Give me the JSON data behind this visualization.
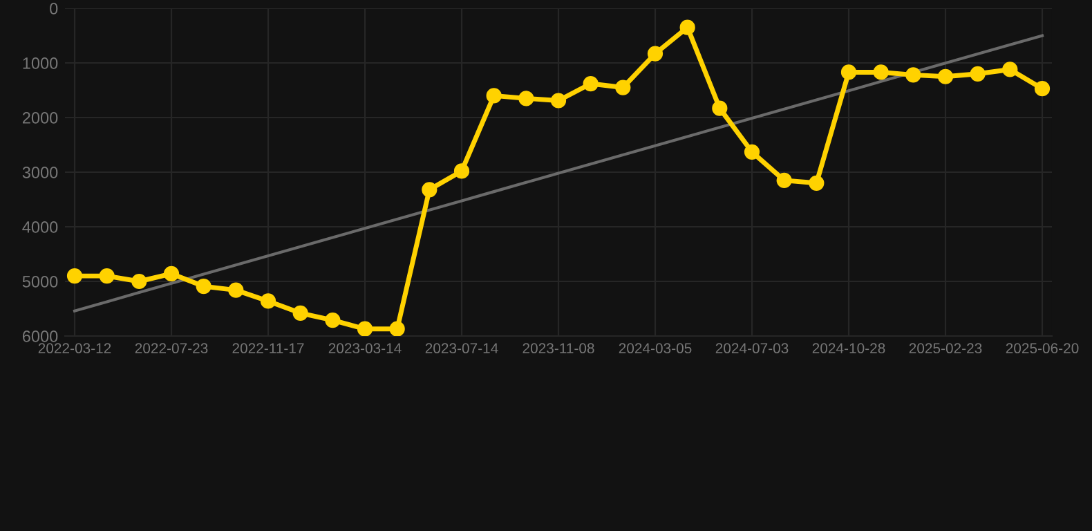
{
  "chart_data": {
    "type": "line",
    "categories": [
      "2022-03-12",
      null,
      null,
      "2022-07-23",
      null,
      null,
      "2022-11-17",
      null,
      null,
      "2023-03-14",
      null,
      null,
      "2023-07-14",
      null,
      null,
      "2023-11-08",
      null,
      null,
      "2024-03-05",
      null,
      null,
      "2024-07-03",
      null,
      null,
      "2024-10-28",
      null,
      null,
      "2025-02-23",
      null,
      null,
      "2025-06-20"
    ],
    "series": [
      {
        "color": "#ffd200",
        "marker": "circle",
        "values": [
          4900,
          4900,
          5000,
          4860,
          5090,
          5160,
          5360,
          5580,
          5710,
          5870,
          5870,
          3320,
          2980,
          1600,
          1650,
          1690,
          1380,
          1450,
          830,
          350,
          1830,
          2630,
          3150,
          3200,
          1170,
          1170,
          1220,
          1250,
          1200,
          1120,
          1470
        ]
      },
      {
        "type": "line",
        "color": "#6a6a6a",
        "marker": "none",
        "values": [
          5540,
          5372,
          5204,
          5036,
          4868,
          4700,
          4532,
          4364,
          4196,
          4028,
          3860,
          3692,
          3524,
          3356,
          3188,
          3020,
          2852,
          2684,
          2516,
          2348,
          2180,
          2012,
          1844,
          1676,
          1508,
          1340,
          1172,
          1004,
          836,
          668,
          500
        ]
      }
    ],
    "ylim": [
      6000,
      0
    ],
    "yticks": [
      0,
      1000,
      2000,
      3000,
      4000,
      5000,
      6000
    ],
    "grid": true
  }
}
